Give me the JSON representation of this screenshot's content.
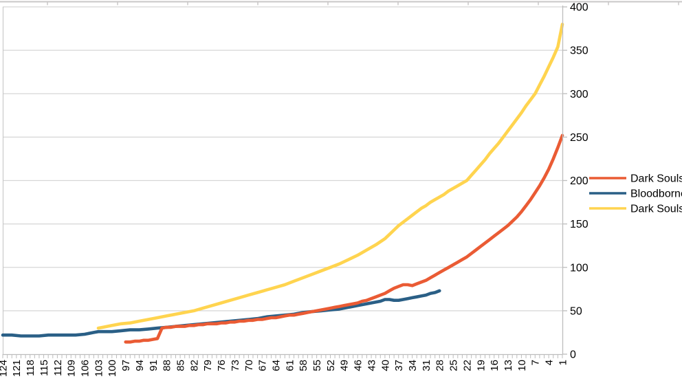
{
  "chart_data": {
    "type": "line",
    "title": "",
    "xlabel": "",
    "ylabel": "",
    "x_axis": {
      "direction": "descending",
      "range": [
        124,
        1
      ],
      "label_step": 3,
      "tick_labels": [
        "124",
        "121",
        "118",
        "115",
        "112",
        "109",
        "106",
        "103",
        "100",
        "97",
        "94",
        "91",
        "88",
        "85",
        "82",
        "79",
        "76",
        "73",
        "70",
        "67",
        "64",
        "61",
        "58",
        "55",
        "52",
        "49",
        "46",
        "43",
        "40",
        "37",
        "34",
        "31",
        "28",
        "25",
        "22",
        "19",
        "16",
        "13",
        "10",
        "7",
        "4",
        "1"
      ]
    },
    "y_axis": {
      "side": "right",
      "range": [
        0,
        400
      ],
      "grid": true,
      "tick_labels": [
        "0",
        "50",
        "100",
        "150",
        "200",
        "250",
        "300",
        "350",
        "400"
      ]
    },
    "legend": {
      "position": "right",
      "entries": [
        "Dark Souls II",
        "Bloodborne",
        "Dark Souls"
      ]
    },
    "series": [
      {
        "name": "Bloodborne",
        "color": "#2A5F86",
        "points": [
          [
            124,
            22
          ],
          [
            122,
            22
          ],
          [
            120,
            21
          ],
          [
            118,
            21
          ],
          [
            116,
            21
          ],
          [
            114,
            22
          ],
          [
            112,
            22
          ],
          [
            110,
            22
          ],
          [
            108,
            22
          ],
          [
            106,
            23
          ],
          [
            104,
            25
          ],
          [
            103,
            26
          ],
          [
            102,
            26
          ],
          [
            100,
            26
          ],
          [
            98,
            27
          ],
          [
            96,
            28
          ],
          [
            94,
            28
          ],
          [
            92,
            29
          ],
          [
            90,
            30
          ],
          [
            88,
            31
          ],
          [
            86,
            32
          ],
          [
            84,
            33
          ],
          [
            82,
            34
          ],
          [
            80,
            35
          ],
          [
            78,
            36
          ],
          [
            76,
            37
          ],
          [
            74,
            38
          ],
          [
            72,
            39
          ],
          [
            70,
            40
          ],
          [
            68,
            41
          ],
          [
            66,
            43
          ],
          [
            64,
            44
          ],
          [
            62,
            45
          ],
          [
            60,
            46
          ],
          [
            58,
            48
          ],
          [
            56,
            49
          ],
          [
            54,
            50
          ],
          [
            52,
            51
          ],
          [
            50,
            52
          ],
          [
            48,
            54
          ],
          [
            46,
            56
          ],
          [
            44,
            58
          ],
          [
            42,
            60
          ],
          [
            41,
            61
          ],
          [
            40,
            63
          ],
          [
            39,
            63
          ],
          [
            38,
            62
          ],
          [
            37,
            62
          ],
          [
            36,
            63
          ],
          [
            35,
            64
          ],
          [
            34,
            65
          ],
          [
            33,
            66
          ],
          [
            32,
            67
          ],
          [
            31,
            68
          ],
          [
            30,
            70
          ],
          [
            29,
            71
          ],
          [
            28,
            73
          ]
        ]
      },
      {
        "name": "Dark Souls II",
        "color": "#EA5B34",
        "points": [
          [
            97,
            14
          ],
          [
            96,
            14
          ],
          [
            95,
            15
          ],
          [
            94,
            15
          ],
          [
            93,
            16
          ],
          [
            92,
            16
          ],
          [
            91,
            17
          ],
          [
            90,
            18
          ],
          [
            89,
            30
          ],
          [
            88,
            31
          ],
          [
            87,
            31
          ],
          [
            86,
            32
          ],
          [
            85,
            32
          ],
          [
            84,
            32
          ],
          [
            83,
            33
          ],
          [
            82,
            33
          ],
          [
            81,
            34
          ],
          [
            80,
            34
          ],
          [
            79,
            35
          ],
          [
            78,
            35
          ],
          [
            77,
            35
          ],
          [
            76,
            36
          ],
          [
            75,
            36
          ],
          [
            74,
            37
          ],
          [
            73,
            37
          ],
          [
            72,
            38
          ],
          [
            71,
            38
          ],
          [
            70,
            39
          ],
          [
            69,
            39
          ],
          [
            68,
            40
          ],
          [
            67,
            40
          ],
          [
            66,
            41
          ],
          [
            65,
            42
          ],
          [
            64,
            42
          ],
          [
            63,
            43
          ],
          [
            62,
            44
          ],
          [
            61,
            45
          ],
          [
            60,
            45
          ],
          [
            59,
            46
          ],
          [
            58,
            47
          ],
          [
            57,
            48
          ],
          [
            56,
            49
          ],
          [
            55,
            50
          ],
          [
            54,
            51
          ],
          [
            53,
            52
          ],
          [
            52,
            53
          ],
          [
            51,
            54
          ],
          [
            50,
            55
          ],
          [
            49,
            56
          ],
          [
            48,
            57
          ],
          [
            47,
            58
          ],
          [
            46,
            59
          ],
          [
            45,
            61
          ],
          [
            44,
            62
          ],
          [
            43,
            64
          ],
          [
            42,
            66
          ],
          [
            41,
            68
          ],
          [
            40,
            70
          ],
          [
            39,
            73
          ],
          [
            38,
            76
          ],
          [
            37,
            78
          ],
          [
            36,
            80
          ],
          [
            35,
            80
          ],
          [
            34,
            79
          ],
          [
            33,
            81
          ],
          [
            32,
            83
          ],
          [
            31,
            85
          ],
          [
            30,
            88
          ],
          [
            29,
            91
          ],
          [
            28,
            94
          ],
          [
            27,
            97
          ],
          [
            26,
            100
          ],
          [
            25,
            103
          ],
          [
            24,
            106
          ],
          [
            23,
            109
          ],
          [
            22,
            112
          ],
          [
            21,
            116
          ],
          [
            20,
            120
          ],
          [
            19,
            124
          ],
          [
            18,
            128
          ],
          [
            17,
            132
          ],
          [
            16,
            136
          ],
          [
            15,
            140
          ],
          [
            14,
            144
          ],
          [
            13,
            148
          ],
          [
            12,
            153
          ],
          [
            11,
            158
          ],
          [
            10,
            164
          ],
          [
            9,
            171
          ],
          [
            8,
            178
          ],
          [
            7,
            186
          ],
          [
            6,
            194
          ],
          [
            5,
            203
          ],
          [
            4,
            213
          ],
          [
            3,
            225
          ],
          [
            2,
            238
          ],
          [
            1,
            252
          ]
        ]
      },
      {
        "name": "Dark Souls",
        "color": "#FFD44F",
        "points": [
          [
            103,
            30
          ],
          [
            102,
            31
          ],
          [
            100,
            33
          ],
          [
            98,
            35
          ],
          [
            96,
            36
          ],
          [
            94,
            38
          ],
          [
            92,
            40
          ],
          [
            90,
            42
          ],
          [
            88,
            44
          ],
          [
            86,
            46
          ],
          [
            84,
            48
          ],
          [
            82,
            50
          ],
          [
            80,
            53
          ],
          [
            78,
            56
          ],
          [
            76,
            59
          ],
          [
            74,
            62
          ],
          [
            72,
            65
          ],
          [
            70,
            68
          ],
          [
            68,
            71
          ],
          [
            66,
            74
          ],
          [
            64,
            77
          ],
          [
            62,
            80
          ],
          [
            60,
            84
          ],
          [
            58,
            88
          ],
          [
            56,
            92
          ],
          [
            54,
            96
          ],
          [
            52,
            100
          ],
          [
            50,
            104
          ],
          [
            48,
            109
          ],
          [
            46,
            114
          ],
          [
            44,
            120
          ],
          [
            42,
            126
          ],
          [
            40,
            133
          ],
          [
            39,
            138
          ],
          [
            38,
            143
          ],
          [
            37,
            148
          ],
          [
            36,
            152
          ],
          [
            35,
            156
          ],
          [
            34,
            160
          ],
          [
            33,
            164
          ],
          [
            32,
            168
          ],
          [
            31,
            171
          ],
          [
            30,
            175
          ],
          [
            29,
            178
          ],
          [
            28,
            181
          ],
          [
            27,
            184
          ],
          [
            26,
            188
          ],
          [
            25,
            191
          ],
          [
            24,
            194
          ],
          [
            23,
            197
          ],
          [
            22,
            200
          ],
          [
            21,
            206
          ],
          [
            20,
            212
          ],
          [
            19,
            218
          ],
          [
            18,
            224
          ],
          [
            17,
            231
          ],
          [
            16,
            237
          ],
          [
            15,
            243
          ],
          [
            14,
            250
          ],
          [
            13,
            257
          ],
          [
            12,
            264
          ],
          [
            11,
            271
          ],
          [
            10,
            278
          ],
          [
            9,
            286
          ],
          [
            8,
            293
          ],
          [
            7,
            300
          ],
          [
            6,
            310
          ],
          [
            5,
            320
          ],
          [
            4,
            331
          ],
          [
            3,
            342
          ],
          [
            2,
            354
          ],
          [
            1,
            380
          ]
        ]
      }
    ],
    "colors": {
      "gridline": "#D6D6D6",
      "axis": "#BDBDBD",
      "plot_border": "#C9C9C9",
      "crop_strip": "#C9C7C7",
      "text": "#000000",
      "background": "#FFFFFF"
    }
  }
}
